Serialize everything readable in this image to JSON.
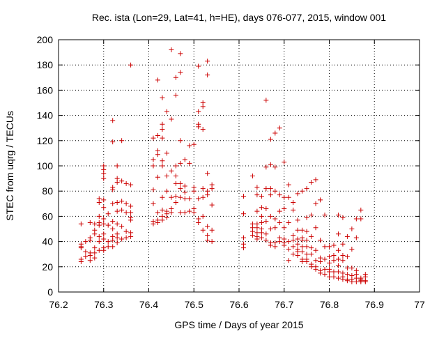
{
  "chart_data": {
    "type": "scatter",
    "title": "Rec. ista (Lon=29, Lat=41, h=HE), days 076-077, 2015, window 001",
    "xlabel": "GPS time / Days of year 2015",
    "ylabel": "STEC from uqrg / TECUs",
    "xlim": [
      76.2,
      77.0
    ],
    "ylim": [
      0,
      200
    ],
    "xticks": [
      76.2,
      76.3,
      76.4,
      76.5,
      76.6,
      76.7,
      76.8,
      76.9,
      77.0
    ],
    "xtick_labels": [
      "76.2",
      "76.3",
      "76.4",
      "76.5",
      "76.6",
      "76.7",
      "76.8",
      "76.9",
      "77"
    ],
    "yticks": [
      0,
      20,
      40,
      60,
      80,
      100,
      120,
      140,
      160,
      180,
      200
    ],
    "yticks_labels": [
      "0",
      "20",
      "40",
      "60",
      "80",
      "100",
      "120",
      "140",
      "160",
      "180",
      "200"
    ],
    "grid": true,
    "marker": "+",
    "colors": {
      "marker": "#cc0000",
      "grid": "#000000",
      "axis": "#000000"
    },
    "points": [
      [
        76.25,
        54
      ],
      [
        76.25,
        38
      ],
      [
        76.25,
        36
      ],
      [
        76.25,
        35
      ],
      [
        76.25,
        26
      ],
      [
        76.25,
        24
      ],
      [
        76.26,
        40
      ],
      [
        76.26,
        32
      ],
      [
        76.26,
        28
      ],
      [
        76.27,
        55
      ],
      [
        76.27,
        43
      ],
      [
        76.27,
        41
      ],
      [
        76.27,
        31
      ],
      [
        76.27,
        29
      ],
      [
        76.27,
        25
      ],
      [
        76.28,
        54
      ],
      [
        76.28,
        49
      ],
      [
        76.28,
        46
      ],
      [
        76.28,
        35
      ],
      [
        76.28,
        31
      ],
      [
        76.28,
        27
      ],
      [
        76.29,
        74
      ],
      [
        76.29,
        71
      ],
      [
        76.29,
        60
      ],
      [
        76.29,
        55
      ],
      [
        76.29,
        53
      ],
      [
        76.29,
        44
      ],
      [
        76.29,
        40
      ],
      [
        76.29,
        33
      ],
      [
        76.3,
        100
      ],
      [
        76.3,
        97
      ],
      [
        76.3,
        94
      ],
      [
        76.3,
        90
      ],
      [
        76.3,
        73
      ],
      [
        76.3,
        67
      ],
      [
        76.3,
        58
      ],
      [
        76.3,
        54
      ],
      [
        76.3,
        46
      ],
      [
        76.3,
        42
      ],
      [
        76.3,
        35
      ],
      [
        76.3,
        33
      ],
      [
        76.31,
        62
      ],
      [
        76.31,
        53
      ],
      [
        76.31,
        40
      ],
      [
        76.31,
        36
      ],
      [
        76.32,
        136
      ],
      [
        76.32,
        119
      ],
      [
        76.32,
        83
      ],
      [
        76.32,
        81
      ],
      [
        76.32,
        70
      ],
      [
        76.32,
        56
      ],
      [
        76.32,
        50
      ],
      [
        76.32,
        44
      ],
      [
        76.32,
        41
      ],
      [
        76.32,
        36
      ],
      [
        76.33,
        100
      ],
      [
        76.33,
        90
      ],
      [
        76.33,
        87
      ],
      [
        76.33,
        71
      ],
      [
        76.33,
        64
      ],
      [
        76.33,
        54
      ],
      [
        76.33,
        46
      ],
      [
        76.33,
        43
      ],
      [
        76.33,
        39
      ],
      [
        76.34,
        120
      ],
      [
        76.34,
        88
      ],
      [
        76.34,
        72
      ],
      [
        76.34,
        65
      ],
      [
        76.34,
        52
      ],
      [
        76.34,
        42
      ],
      [
        76.35,
        86
      ],
      [
        76.35,
        70
      ],
      [
        76.35,
        63
      ],
      [
        76.35,
        48
      ],
      [
        76.35,
        43
      ],
      [
        76.36,
        180
      ],
      [
        76.36,
        85
      ],
      [
        76.36,
        68
      ],
      [
        76.36,
        63
      ],
      [
        76.36,
        59
      ],
      [
        76.36,
        57
      ],
      [
        76.36,
        47
      ],
      [
        76.36,
        44
      ],
      [
        76.41,
        122
      ],
      [
        76.41,
        105
      ],
      [
        76.41,
        100
      ],
      [
        76.41,
        81
      ],
      [
        76.41,
        70
      ],
      [
        76.41,
        56
      ],
      [
        76.41,
        54
      ],
      [
        76.42,
        168
      ],
      [
        76.42,
        124
      ],
      [
        76.42,
        112
      ],
      [
        76.42,
        109
      ],
      [
        76.42,
        91
      ],
      [
        76.42,
        63
      ],
      [
        76.42,
        57
      ],
      [
        76.42,
        55
      ],
      [
        76.43,
        154
      ],
      [
        76.43,
        133
      ],
      [
        76.43,
        129
      ],
      [
        76.43,
        122
      ],
      [
        76.43,
        104
      ],
      [
        76.43,
        100
      ],
      [
        76.43,
        75
      ],
      [
        76.43,
        65
      ],
      [
        76.43,
        60
      ],
      [
        76.43,
        57
      ],
      [
        76.44,
        143
      ],
      [
        76.44,
        110
      ],
      [
        76.44,
        92
      ],
      [
        76.44,
        80
      ],
      [
        76.44,
        64
      ],
      [
        76.44,
        62
      ],
      [
        76.44,
        59
      ],
      [
        76.45,
        192
      ],
      [
        76.45,
        137
      ],
      [
        76.45,
        96
      ],
      [
        76.45,
        75
      ],
      [
        76.45,
        66
      ],
      [
        76.45,
        63
      ],
      [
        76.46,
        170
      ],
      [
        76.46,
        156
      ],
      [
        76.46,
        100
      ],
      [
        76.46,
        92
      ],
      [
        76.46,
        86
      ],
      [
        76.46,
        76
      ],
      [
        76.46,
        71
      ],
      [
        76.47,
        189
      ],
      [
        76.47,
        174
      ],
      [
        76.47,
        120
      ],
      [
        76.47,
        102
      ],
      [
        76.47,
        86
      ],
      [
        76.47,
        82
      ],
      [
        76.47,
        75
      ],
      [
        76.47,
        63
      ],
      [
        76.48,
        105
      ],
      [
        76.48,
        84
      ],
      [
        76.48,
        79
      ],
      [
        76.48,
        74
      ],
      [
        76.48,
        63
      ],
      [
        76.49,
        116
      ],
      [
        76.49,
        102
      ],
      [
        76.49,
        74
      ],
      [
        76.49,
        64
      ],
      [
        76.5,
        117
      ],
      [
        76.5,
        83
      ],
      [
        76.5,
        80
      ],
      [
        76.5,
        66
      ],
      [
        76.5,
        63
      ],
      [
        76.51,
        179
      ],
      [
        76.51,
        143
      ],
      [
        76.51,
        133
      ],
      [
        76.51,
        131
      ],
      [
        76.51,
        74
      ],
      [
        76.51,
        58
      ],
      [
        76.51,
        55
      ],
      [
        76.52,
        150
      ],
      [
        76.52,
        147
      ],
      [
        76.52,
        129
      ],
      [
        76.52,
        82
      ],
      [
        76.52,
        75
      ],
      [
        76.52,
        60
      ],
      [
        76.52,
        49
      ],
      [
        76.53,
        183
      ],
      [
        76.53,
        172
      ],
      [
        76.53,
        94
      ],
      [
        76.53,
        80
      ],
      [
        76.53,
        77
      ],
      [
        76.53,
        52
      ],
      [
        76.53,
        45
      ],
      [
        76.53,
        41
      ],
      [
        76.54,
        85
      ],
      [
        76.54,
        82
      ],
      [
        76.54,
        69
      ],
      [
        76.54,
        49
      ],
      [
        76.54,
        40
      ],
      [
        76.61,
        76
      ],
      [
        76.61,
        62
      ],
      [
        76.61,
        43
      ],
      [
        76.61,
        38
      ],
      [
        76.61,
        35
      ],
      [
        76.63,
        92
      ],
      [
        76.63,
        54
      ],
      [
        76.63,
        51
      ],
      [
        76.63,
        48
      ],
      [
        76.63,
        45
      ],
      [
        76.64,
        83
      ],
      [
        76.64,
        77
      ],
      [
        76.64,
        64
      ],
      [
        76.64,
        54
      ],
      [
        76.64,
        51
      ],
      [
        76.64,
        47
      ],
      [
        76.64,
        44
      ],
      [
        76.64,
        42
      ],
      [
        76.65,
        76
      ],
      [
        76.65,
        67
      ],
      [
        76.65,
        60
      ],
      [
        76.65,
        55
      ],
      [
        76.65,
        50
      ],
      [
        76.65,
        47
      ],
      [
        76.65,
        43
      ],
      [
        76.66,
        152
      ],
      [
        76.66,
        99
      ],
      [
        76.66,
        82
      ],
      [
        76.66,
        66
      ],
      [
        76.66,
        56
      ],
      [
        76.66,
        46
      ],
      [
        76.66,
        41
      ],
      [
        76.67,
        121
      ],
      [
        76.67,
        101
      ],
      [
        76.67,
        82
      ],
      [
        76.67,
        77
      ],
      [
        76.67,
        60
      ],
      [
        76.67,
        50
      ],
      [
        76.67,
        39
      ],
      [
        76.67,
        37
      ],
      [
        76.68,
        126
      ],
      [
        76.68,
        99
      ],
      [
        76.68,
        80
      ],
      [
        76.68,
        58
      ],
      [
        76.68,
        51
      ],
      [
        76.68,
        39
      ],
      [
        76.68,
        36
      ],
      [
        76.69,
        130
      ],
      [
        76.69,
        77
      ],
      [
        76.69,
        64
      ],
      [
        76.69,
        55
      ],
      [
        76.69,
        43
      ],
      [
        76.69,
        40
      ],
      [
        76.7,
        103
      ],
      [
        76.7,
        75
      ],
      [
        76.7,
        66
      ],
      [
        76.7,
        51
      ],
      [
        76.7,
        42
      ],
      [
        76.7,
        39
      ],
      [
        76.7,
        37
      ],
      [
        76.71,
        85
      ],
      [
        76.71,
        75
      ],
      [
        76.71,
        55
      ],
      [
        76.71,
        40
      ],
      [
        76.71,
        34
      ],
      [
        76.71,
        25
      ],
      [
        76.72,
        71
      ],
      [
        76.72,
        65
      ],
      [
        76.72,
        45
      ],
      [
        76.72,
        41
      ],
      [
        76.72,
        36
      ],
      [
        76.72,
        30
      ],
      [
        76.73,
        78
      ],
      [
        76.73,
        57
      ],
      [
        76.73,
        49
      ],
      [
        76.73,
        42
      ],
      [
        76.73,
        38
      ],
      [
        76.73,
        34
      ],
      [
        76.73,
        32
      ],
      [
        76.73,
        29
      ],
      [
        76.74,
        80
      ],
      [
        76.74,
        49
      ],
      [
        76.74,
        43
      ],
      [
        76.74,
        41
      ],
      [
        76.74,
        36
      ],
      [
        76.74,
        32
      ],
      [
        76.74,
        26
      ],
      [
        76.74,
        24
      ],
      [
        76.75,
        82
      ],
      [
        76.75,
        59
      ],
      [
        76.75,
        48
      ],
      [
        76.75,
        41
      ],
      [
        76.75,
        36
      ],
      [
        76.75,
        30
      ],
      [
        76.75,
        26
      ],
      [
        76.75,
        24
      ],
      [
        76.76,
        87
      ],
      [
        76.76,
        61
      ],
      [
        76.76,
        44
      ],
      [
        76.76,
        35
      ],
      [
        76.76,
        30
      ],
      [
        76.76,
        22
      ],
      [
        76.76,
        20
      ],
      [
        76.77,
        89
      ],
      [
        76.77,
        70
      ],
      [
        76.77,
        51
      ],
      [
        76.77,
        33
      ],
      [
        76.77,
        25
      ],
      [
        76.77,
        20
      ],
      [
        76.77,
        18
      ],
      [
        76.78,
        73
      ],
      [
        76.78,
        41
      ],
      [
        76.78,
        27
      ],
      [
        76.78,
        24
      ],
      [
        76.78,
        17
      ],
      [
        76.78,
        15
      ],
      [
        76.79,
        61
      ],
      [
        76.79,
        36
      ],
      [
        76.79,
        26
      ],
      [
        76.79,
        18
      ],
      [
        76.79,
        14
      ],
      [
        76.8,
        36
      ],
      [
        76.8,
        28
      ],
      [
        76.8,
        23
      ],
      [
        76.8,
        18
      ],
      [
        76.8,
        16
      ],
      [
        76.8,
        12
      ],
      [
        76.81,
        37
      ],
      [
        76.81,
        29
      ],
      [
        76.81,
        25
      ],
      [
        76.81,
        16
      ],
      [
        76.81,
        12
      ],
      [
        76.82,
        61
      ],
      [
        76.82,
        46
      ],
      [
        76.82,
        33
      ],
      [
        76.82,
        26
      ],
      [
        76.82,
        21
      ],
      [
        76.82,
        16
      ],
      [
        76.82,
        11
      ],
      [
        76.83,
        59
      ],
      [
        76.83,
        38
      ],
      [
        76.83,
        29
      ],
      [
        76.83,
        25
      ],
      [
        76.83,
        15
      ],
      [
        76.83,
        12
      ],
      [
        76.83,
        10
      ],
      [
        76.84,
        44
      ],
      [
        76.84,
        28
      ],
      [
        76.84,
        19
      ],
      [
        76.84,
        14
      ],
      [
        76.84,
        10
      ],
      [
        76.84,
        9
      ],
      [
        76.85,
        50
      ],
      [
        76.85,
        34
      ],
      [
        76.85,
        19
      ],
      [
        76.85,
        13
      ],
      [
        76.85,
        10
      ],
      [
        76.85,
        8
      ],
      [
        76.86,
        58
      ],
      [
        76.86,
        43
      ],
      [
        76.86,
        17
      ],
      [
        76.86,
        14
      ],
      [
        76.86,
        11
      ],
      [
        76.86,
        8
      ],
      [
        76.87,
        65
      ],
      [
        76.87,
        58
      ],
      [
        76.87,
        11
      ],
      [
        76.87,
        10
      ],
      [
        76.87,
        9
      ],
      [
        76.87,
        8
      ],
      [
        76.88,
        14
      ],
      [
        76.88,
        12
      ],
      [
        76.88,
        9
      ],
      [
        76.88,
        8
      ]
    ]
  }
}
